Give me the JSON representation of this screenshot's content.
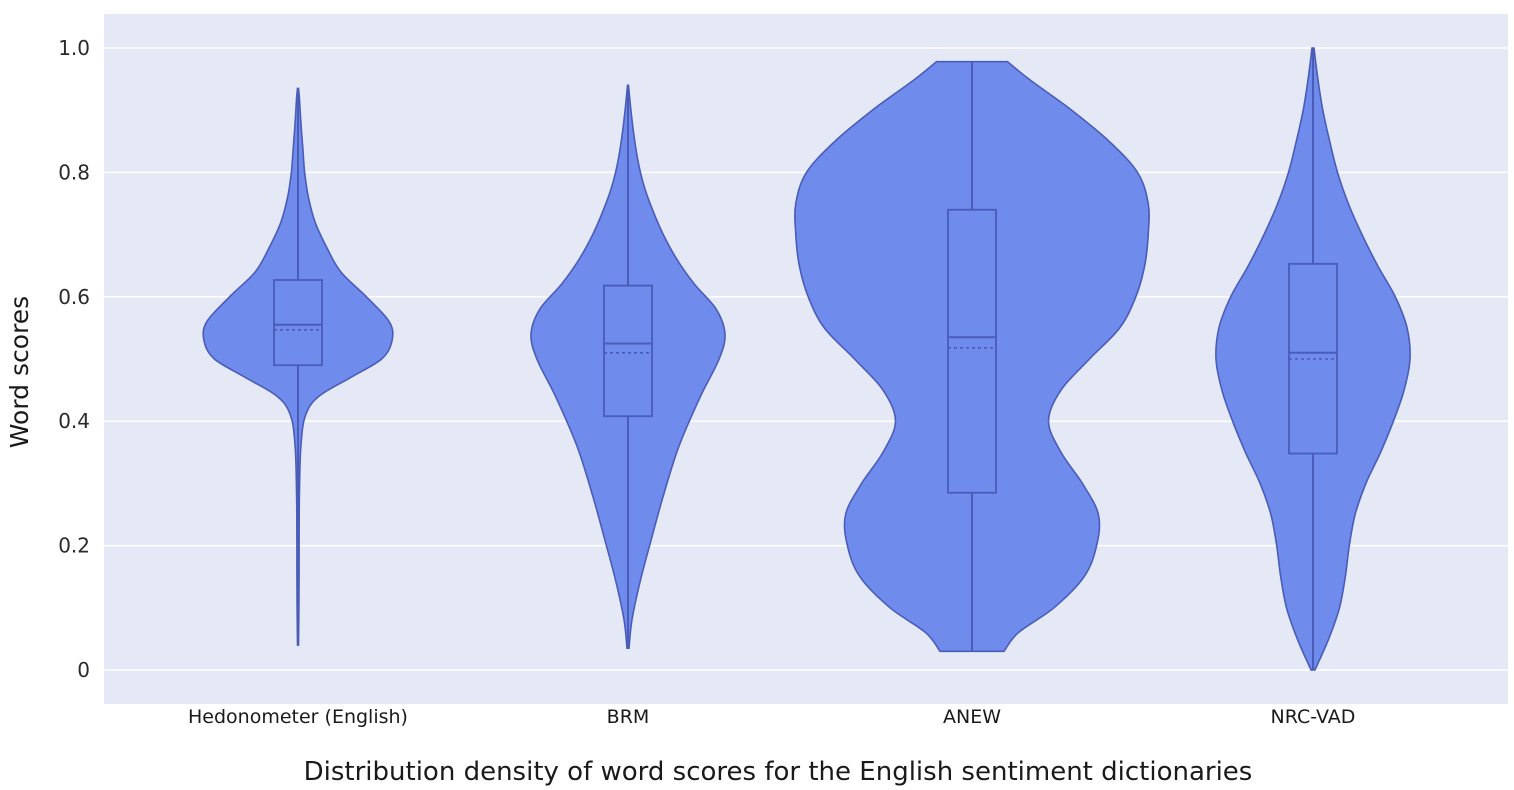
{
  "chart_data": {
    "type": "violin",
    "title": "",
    "xlabel": "Distribution density of word scores for the English sentiment dictionaries",
    "ylabel": "Word scores",
    "ylim": [
      0,
      1.0
    ],
    "yticks": [
      {
        "value": 0,
        "label": "0"
      },
      {
        "value": 0.2,
        "label": "0.2"
      },
      {
        "value": 0.4,
        "label": "0.4"
      },
      {
        "value": 0.6,
        "label": "0.6"
      },
      {
        "value": 0.8,
        "label": "0.8"
      },
      {
        "value": 1.0,
        "label": "1.0"
      }
    ],
    "grid": true,
    "legend": "none",
    "colors": {
      "plot_background": "#e5e9f6",
      "violin_fill": "#6f8ced",
      "violin_line": "#4a5bb8",
      "gridline": "#ffffff"
    },
    "categories": [
      "Hedonometer (English)",
      "BRM",
      "ANEW",
      "NRC-VAD"
    ],
    "series": [
      {
        "category": "Hedonometer (English)",
        "min": 0.04,
        "q1": 0.49,
        "median": 0.555,
        "mean": 0.547,
        "q3": 0.627,
        "max": 0.935,
        "density": [
          [
            0.04,
            0.005
          ],
          [
            0.1,
            0.01
          ],
          [
            0.2,
            0.012
          ],
          [
            0.28,
            0.015
          ],
          [
            0.36,
            0.03
          ],
          [
            0.41,
            0.08
          ],
          [
            0.44,
            0.22
          ],
          [
            0.47,
            0.55
          ],
          [
            0.5,
            0.88
          ],
          [
            0.53,
            0.99
          ],
          [
            0.56,
            0.96
          ],
          [
            0.6,
            0.72
          ],
          [
            0.64,
            0.45
          ],
          [
            0.68,
            0.3
          ],
          [
            0.72,
            0.18
          ],
          [
            0.76,
            0.11
          ],
          [
            0.8,
            0.07
          ],
          [
            0.84,
            0.05
          ],
          [
            0.88,
            0.03
          ],
          [
            0.92,
            0.015
          ],
          [
            0.935,
            0.005
          ]
        ]
      },
      {
        "category": "BRM",
        "min": 0.035,
        "q1": 0.408,
        "median": 0.525,
        "mean": 0.51,
        "q3": 0.618,
        "max": 0.94,
        "density": [
          [
            0.035,
            0.01
          ],
          [
            0.08,
            0.04
          ],
          [
            0.14,
            0.12
          ],
          [
            0.2,
            0.22
          ],
          [
            0.28,
            0.36
          ],
          [
            0.36,
            0.52
          ],
          [
            0.44,
            0.74
          ],
          [
            0.5,
            0.93
          ],
          [
            0.54,
            0.99
          ],
          [
            0.58,
            0.9
          ],
          [
            0.62,
            0.68
          ],
          [
            0.66,
            0.5
          ],
          [
            0.7,
            0.36
          ],
          [
            0.74,
            0.25
          ],
          [
            0.78,
            0.16
          ],
          [
            0.82,
            0.1
          ],
          [
            0.86,
            0.06
          ],
          [
            0.9,
            0.03
          ],
          [
            0.94,
            0.005
          ]
        ]
      },
      {
        "category": "ANEW",
        "min": 0.03,
        "q1": 0.285,
        "median": 0.535,
        "mean": 0.518,
        "q3": 0.74,
        "max": 0.978,
        "density": [
          [
            0.03,
            0.18
          ],
          [
            0.06,
            0.26
          ],
          [
            0.1,
            0.46
          ],
          [
            0.15,
            0.63
          ],
          [
            0.2,
            0.7
          ],
          [
            0.25,
            0.71
          ],
          [
            0.3,
            0.62
          ],
          [
            0.35,
            0.5
          ],
          [
            0.4,
            0.43
          ],
          [
            0.45,
            0.5
          ],
          [
            0.5,
            0.66
          ],
          [
            0.55,
            0.83
          ],
          [
            0.6,
            0.92
          ],
          [
            0.65,
            0.97
          ],
          [
            0.7,
            0.99
          ],
          [
            0.75,
            0.99
          ],
          [
            0.8,
            0.93
          ],
          [
            0.85,
            0.77
          ],
          [
            0.9,
            0.56
          ],
          [
            0.95,
            0.32
          ],
          [
            0.978,
            0.2
          ]
        ]
      },
      {
        "category": "NRC-VAD",
        "min": 0.0,
        "q1": 0.348,
        "median": 0.51,
        "mean": 0.5,
        "q3": 0.653,
        "max": 1.0,
        "density": [
          [
            0.0,
            0.02
          ],
          [
            0.05,
            0.16
          ],
          [
            0.1,
            0.27
          ],
          [
            0.15,
            0.33
          ],
          [
            0.2,
            0.37
          ],
          [
            0.25,
            0.43
          ],
          [
            0.3,
            0.54
          ],
          [
            0.35,
            0.69
          ],
          [
            0.4,
            0.82
          ],
          [
            0.45,
            0.93
          ],
          [
            0.5,
            0.99
          ],
          [
            0.55,
            0.96
          ],
          [
            0.6,
            0.84
          ],
          [
            0.65,
            0.66
          ],
          [
            0.7,
            0.5
          ],
          [
            0.75,
            0.36
          ],
          [
            0.8,
            0.25
          ],
          [
            0.85,
            0.17
          ],
          [
            0.9,
            0.1
          ],
          [
            0.95,
            0.05
          ],
          [
            1.0,
            0.01
          ]
        ]
      }
    ]
  }
}
